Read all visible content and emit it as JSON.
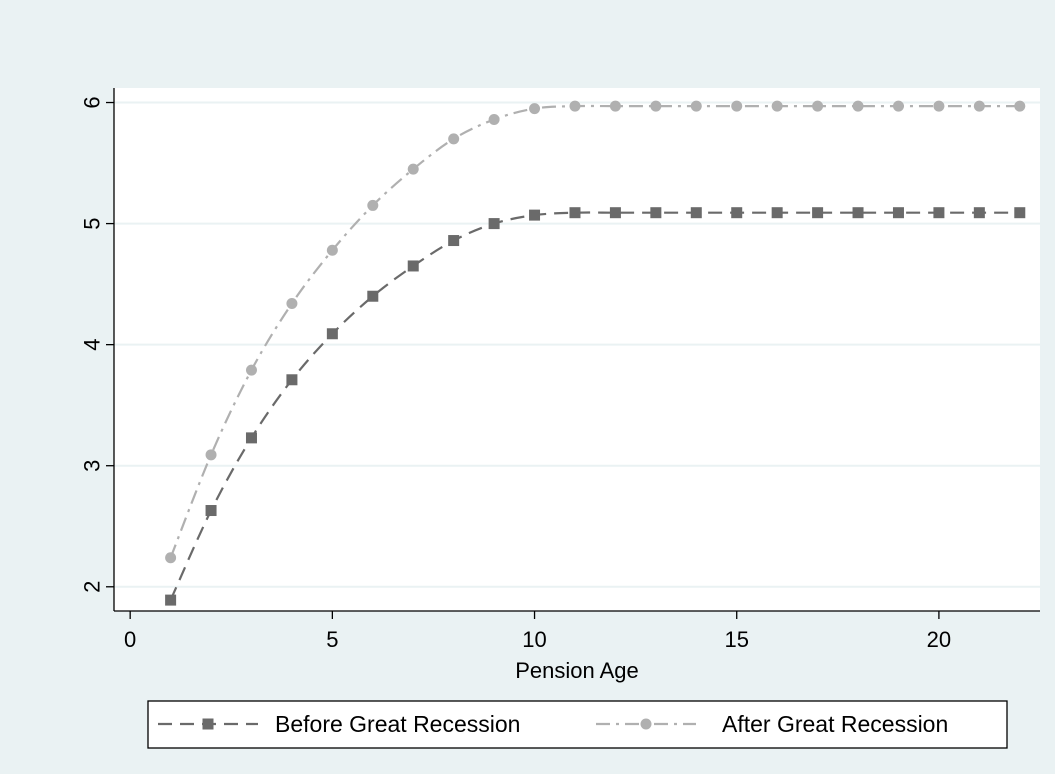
{
  "chart_data": {
    "type": "line",
    "title": "",
    "xlabel": "Pension Age",
    "ylabel": "",
    "xlim": [
      -0.4,
      22.5
    ],
    "ylim": [
      1.8,
      6.12
    ],
    "xticks": [
      0,
      5,
      10,
      15,
      20
    ],
    "yticks": [
      2,
      3,
      4,
      5,
      6
    ],
    "xtick_labels": [
      "0",
      "5",
      "10",
      "15",
      "20"
    ],
    "ytick_labels": [
      "2",
      "3",
      "4",
      "5",
      "6"
    ],
    "grid": true,
    "legend_position": "bottom",
    "x": [
      1,
      2,
      3,
      4,
      5,
      6,
      7,
      8,
      9,
      10,
      11,
      12,
      13,
      14,
      15,
      16,
      17,
      18,
      19,
      20,
      21,
      22
    ],
    "series": [
      {
        "name": "Before Great Recession",
        "marker": "square",
        "line_style": "dash",
        "color": "#6a6a6a",
        "values": [
          1.89,
          2.63,
          3.23,
          3.71,
          4.09,
          4.4,
          4.65,
          4.86,
          5.0,
          5.07,
          5.09,
          5.09,
          5.09,
          5.09,
          5.09,
          5.09,
          5.09,
          5.09,
          5.09,
          5.09,
          5.09,
          5.09
        ]
      },
      {
        "name": "After Great Recession",
        "marker": "circle",
        "line_style": "dash-dot",
        "color": "#b0b0b0",
        "values": [
          2.24,
          3.09,
          3.79,
          4.34,
          4.78,
          5.15,
          5.45,
          5.7,
          5.86,
          5.95,
          5.97,
          5.97,
          5.97,
          5.97,
          5.97,
          5.97,
          5.97,
          5.97,
          5.97,
          5.97,
          5.97,
          5.97
        ]
      }
    ],
    "colors": {
      "outer_background": "#eaf2f3",
      "plot_background": "#ffffff",
      "gridline": "#eaf2f3"
    }
  }
}
